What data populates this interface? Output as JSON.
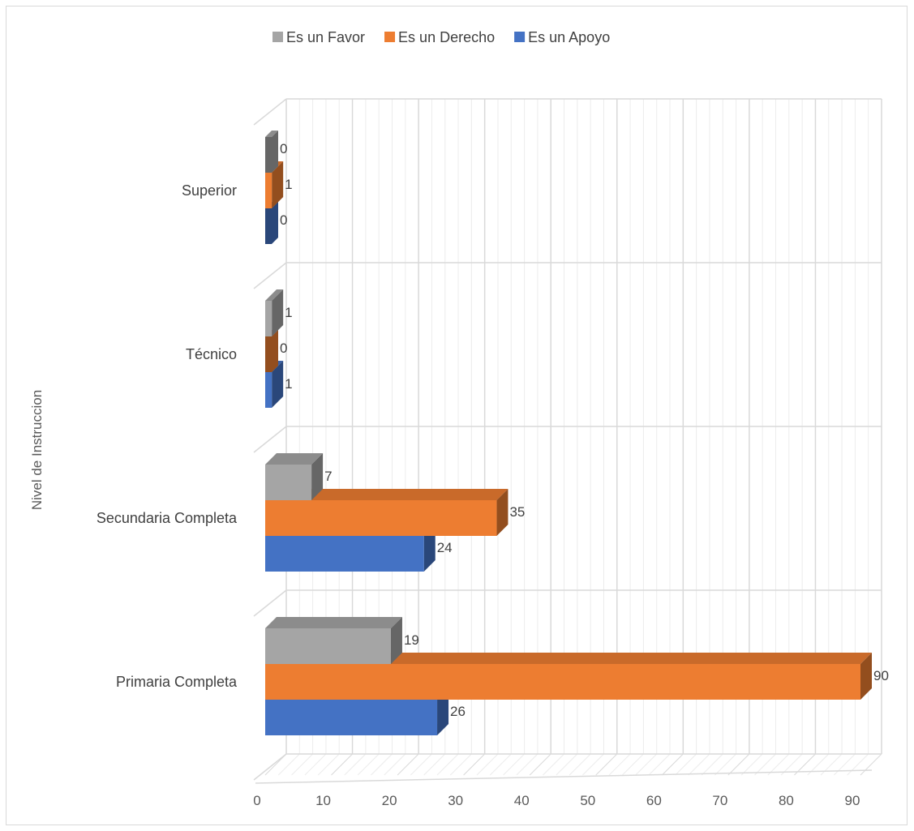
{
  "chart_data": {
    "type": "bar",
    "orientation": "horizontal",
    "style": "3d-clustered",
    "categories": [
      "Primaria Completa",
      "Secundaria Completa",
      "Técnico",
      "Superior"
    ],
    "series": [
      {
        "name": "Es un Apoyo",
        "color": "#4472c4",
        "values": [
          26,
          24,
          1,
          0
        ]
      },
      {
        "name": "Es un Derecho",
        "color": "#ed7d31",
        "values": [
          90,
          35,
          0,
          1
        ]
      },
      {
        "name": "Es un Favor",
        "color": "#a5a5a5",
        "values": [
          19,
          7,
          1,
          0
        ]
      }
    ],
    "legend_order": [
      "Es un Favor",
      "Es un Derecho",
      "Es un Apoyo"
    ],
    "legend_position": "top",
    "xlabel": "",
    "ylabel": "Nivel de Instruccion",
    "xlim": [
      0,
      90
    ],
    "xticks": [
      "0",
      "10",
      "20",
      "30",
      "40",
      "50",
      "60",
      "70",
      "80",
      "90"
    ],
    "data_labels": true,
    "grid": true
  }
}
